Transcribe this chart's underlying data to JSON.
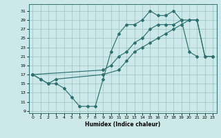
{
  "xlabel": "Humidex (Indice chaleur)",
  "bg_color": "#cce8e8",
  "grid_color": "#a0c8c8",
  "line_color": "#2d7070",
  "xlim": [
    -0.5,
    23.5
  ],
  "ylim": [
    8.5,
    32.5
  ],
  "xticks": [
    0,
    1,
    2,
    3,
    4,
    5,
    6,
    7,
    8,
    9,
    10,
    11,
    12,
    13,
    14,
    15,
    16,
    17,
    18,
    19,
    20,
    21,
    22,
    23
  ],
  "yticks": [
    9,
    11,
    13,
    15,
    17,
    19,
    21,
    23,
    25,
    27,
    29,
    31
  ],
  "line1_x": [
    0,
    1,
    2,
    3,
    4,
    5,
    6,
    7,
    8,
    9,
    10,
    11,
    12,
    13,
    14,
    15,
    16,
    17,
    18,
    19,
    20,
    21
  ],
  "line1_y": [
    17,
    16,
    15,
    15,
    14,
    12,
    10,
    10,
    10,
    16,
    22,
    26,
    28,
    28,
    29,
    31,
    30,
    30,
    31,
    29,
    22,
    21
  ],
  "line2_x": [
    0,
    1,
    2,
    3,
    9,
    11,
    12,
    13,
    14,
    15,
    16,
    17,
    18,
    19,
    20,
    21,
    22,
    23
  ],
  "line2_y": [
    17,
    16,
    15,
    16,
    17,
    18,
    20,
    22,
    23,
    24,
    25,
    26,
    27,
    28,
    29,
    29,
    21,
    21
  ],
  "line3_x": [
    0,
    9,
    10,
    11,
    12,
    13,
    14,
    15,
    16,
    17,
    18,
    19,
    20,
    21,
    22,
    23
  ],
  "line3_y": [
    17,
    18,
    19,
    21,
    22,
    24,
    25,
    27,
    28,
    28,
    28,
    29,
    29,
    29,
    21,
    21
  ]
}
